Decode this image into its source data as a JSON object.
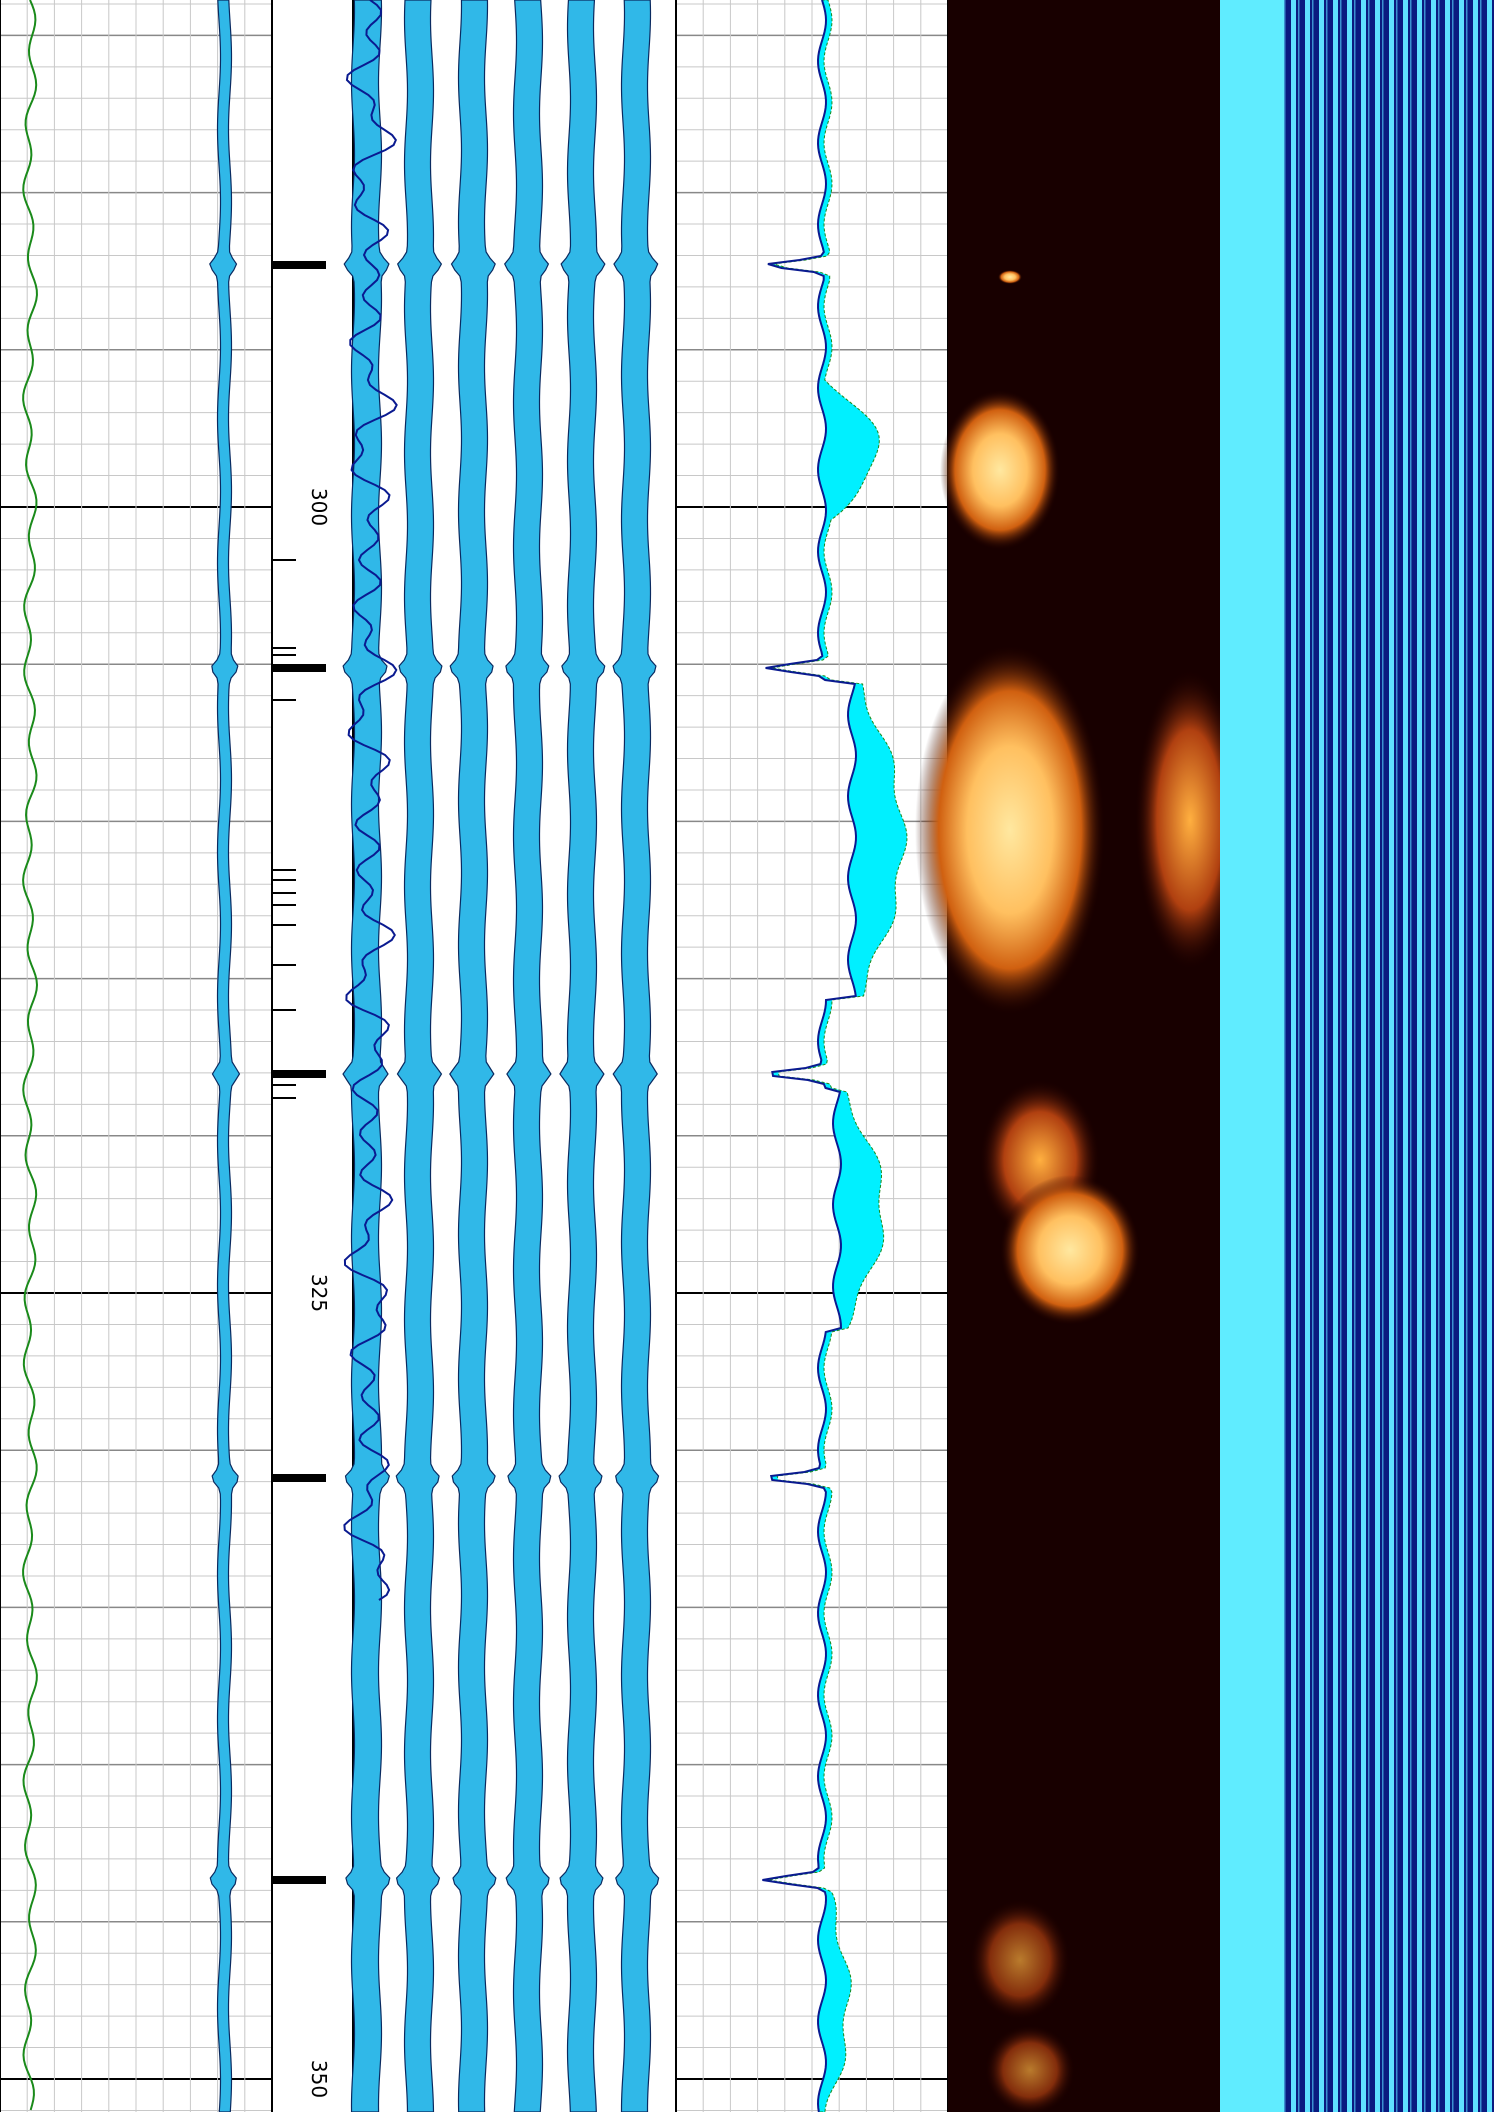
{
  "depth_track": {
    "labels": [
      300,
      325,
      350
    ]
  }
}
